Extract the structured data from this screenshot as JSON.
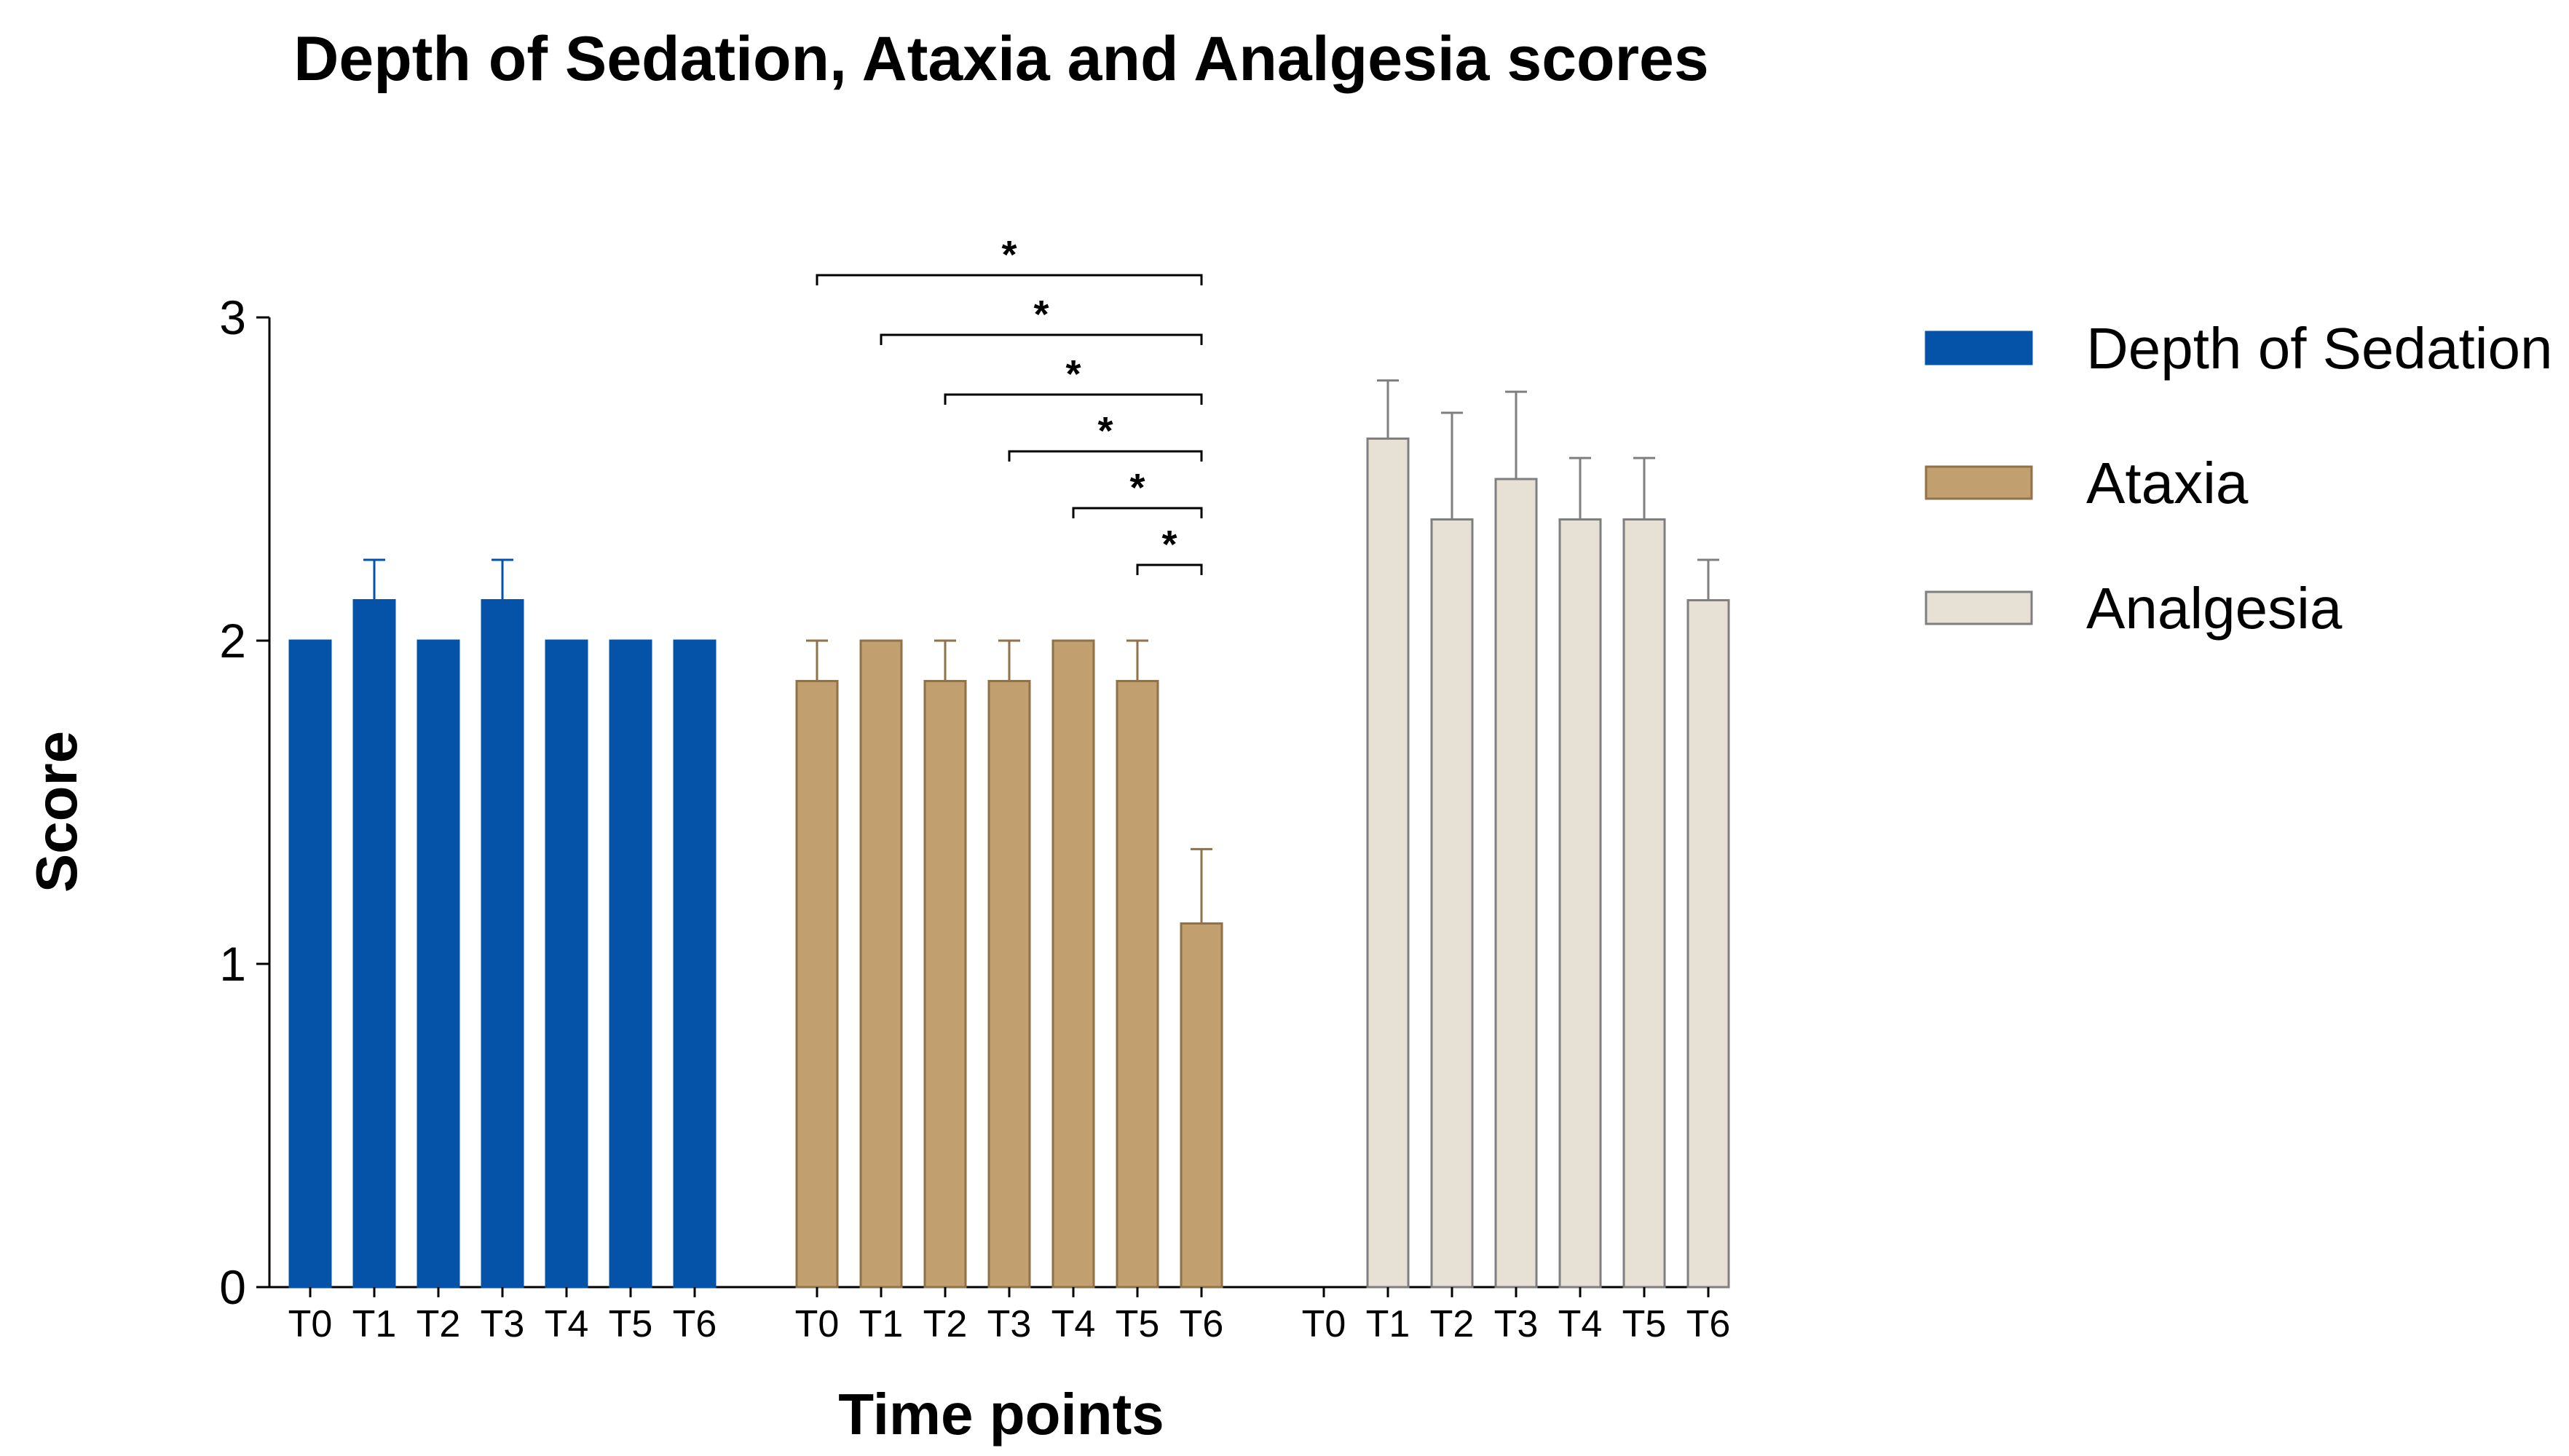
{
  "chart_data": {
    "type": "bar",
    "title": "Depth of Sedation, Ataxia and Analgesia scores",
    "xlabel": "Time points",
    "ylabel": "Score",
    "ylim": [
      0,
      3
    ],
    "yticks": [
      "0",
      "1",
      "2",
      "3"
    ],
    "categories": [
      "T0",
      "T1",
      "T2",
      "T3",
      "T4",
      "T5",
      "T6"
    ],
    "series": [
      {
        "name": "Depth of Sedation",
        "color": "#0553A8",
        "stroke": "#0553A8",
        "values": [
          2.0,
          2.125,
          2.0,
          2.125,
          2.0,
          2.0,
          2.0
        ],
        "errors": [
          0,
          0.125,
          0,
          0.125,
          0,
          0,
          0
        ]
      },
      {
        "name": "Ataxia",
        "color": "#C29F6F",
        "stroke": "#8F7248",
        "values": [
          1.875,
          2.0,
          1.875,
          1.875,
          2.0,
          1.875,
          1.125
        ],
        "errors": [
          0.125,
          0,
          0.125,
          0.125,
          0,
          0.125,
          0.23
        ]
      },
      {
        "name": "Analgesia",
        "color": "#E6E1D4",
        "stroke": "#7F7F7F",
        "values": [
          0,
          2.625,
          2.375,
          2.5,
          2.375,
          2.375,
          2.125
        ],
        "errors": [
          0,
          0.18,
          0.33,
          0.27,
          0.19,
          0.19,
          0.125
        ]
      }
    ],
    "significance": [
      {
        "series": "Ataxia",
        "from": "T0",
        "to": "T6",
        "label": "*"
      },
      {
        "series": "Ataxia",
        "from": "T1",
        "to": "T6",
        "label": "*"
      },
      {
        "series": "Ataxia",
        "from": "T2",
        "to": "T6",
        "label": "*"
      },
      {
        "series": "Ataxia",
        "from": "T3",
        "to": "T6",
        "label": "*"
      },
      {
        "series": "Ataxia",
        "from": "T4",
        "to": "T6",
        "label": "*"
      },
      {
        "series": "Ataxia",
        "from": "T5",
        "to": "T6",
        "label": "*"
      }
    ],
    "legend_position": "right"
  }
}
